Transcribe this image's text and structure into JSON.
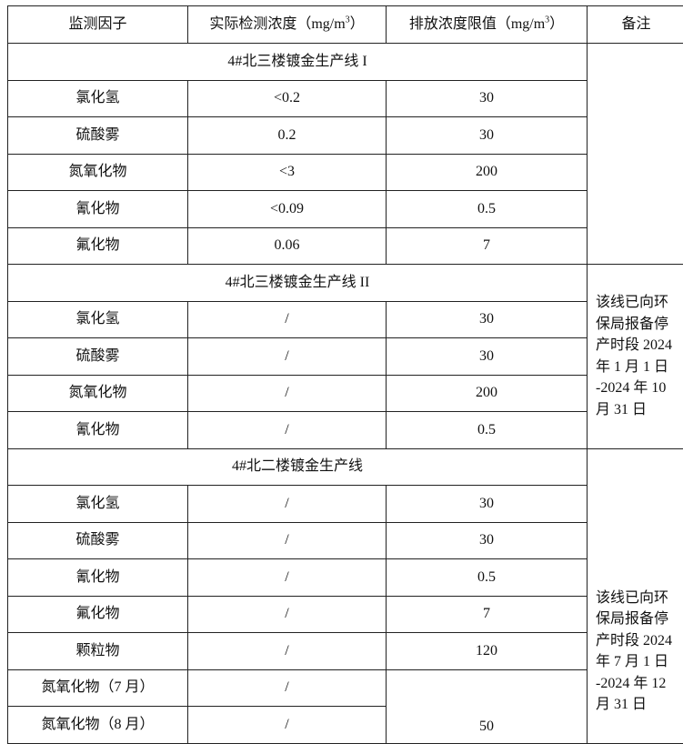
{
  "header": {
    "factor": "监测因子",
    "actual_prefix": "实际检测浓度（mg/m",
    "limit_prefix": "排放浓度限值（mg/m",
    "unit_sup": "3",
    "close_paren": "）",
    "remark": "备注"
  },
  "sections": [
    {
      "title": "4#北三楼镀金生产线 I",
      "remark": "",
      "rows": [
        {
          "factor": "氯化氢",
          "actual": "<0.2",
          "limit": "30"
        },
        {
          "factor": "硫酸雾",
          "actual": "0.2",
          "limit": "30"
        },
        {
          "factor": "氮氧化物",
          "actual": "<3",
          "limit": "200"
        },
        {
          "factor": "氰化物",
          "actual": "<0.09",
          "limit": "0.5"
        },
        {
          "factor": "氟化物",
          "actual": "0.06",
          "limit": "7"
        }
      ]
    },
    {
      "title": "4#北三楼镀金生产线 II",
      "remark": "该线已向环保局报备停产时段 2024 年 1 月 1 日 -2024 年 10 月 31 日",
      "rows": [
        {
          "factor": "氯化氢",
          "actual": "/",
          "limit": "30"
        },
        {
          "factor": "硫酸雾",
          "actual": "/",
          "limit": "30"
        },
        {
          "factor": "氮氧化物",
          "actual": "/",
          "limit": "200"
        },
        {
          "factor": "氰化物",
          "actual": "/",
          "limit": "0.5"
        }
      ]
    },
    {
      "title": "4#北二楼镀金生产线",
      "remark": "该线已向环保局报备停产时段 2024 年 7 月 1 日 -2024 年 12 月 31 日",
      "rows": [
        {
          "factor": "氯化氢",
          "actual": "/",
          "limit": "30"
        },
        {
          "factor": "硫酸雾",
          "actual": "/",
          "limit": "30"
        },
        {
          "factor": "氰化物",
          "actual": "/",
          "limit": "0.5"
        },
        {
          "factor": "氟化物",
          "actual": "/",
          "limit": "7"
        },
        {
          "factor": "颗粒物",
          "actual": "/",
          "limit": "120"
        },
        {
          "factor": "氮氧化物（7 月）",
          "actual": "/",
          "limit": "50"
        },
        {
          "factor": "氮氧化物（8 月）",
          "actual": "/",
          "limit": ""
        }
      ]
    }
  ]
}
